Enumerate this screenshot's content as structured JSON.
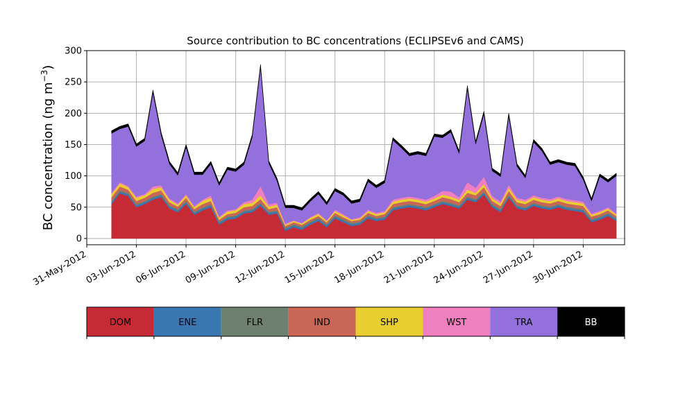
{
  "chart_data": {
    "type": "area",
    "title": "Source contribution to BC concentrations (ECLIPSEv6 and CAMS)",
    "ylabel": "BC concentration (ng m",
    "ylabel_exponent": "−3",
    "ylabel_close": ")",
    "xlabel": "",
    "ylim": [
      -10,
      300
    ],
    "xlim": [
      "2012-05-31T00:00",
      "2012-07-02T12:00"
    ],
    "grid": true,
    "y_ticks": [
      0,
      50,
      100,
      150,
      200,
      250,
      300
    ],
    "x_ticks": [
      "2012-05-31",
      "2012-06-03",
      "2012-06-06",
      "2012-06-09",
      "2012-06-12",
      "2012-06-15",
      "2012-06-18",
      "2012-06-21",
      "2012-06-24",
      "2012-06-27",
      "2012-06-30"
    ],
    "x_tick_labels": [
      "31-May-2012",
      "03-Jun-2012",
      "06-Jun-2012",
      "09-Jun-2012",
      "12-Jun-2012",
      "15-Jun-2012",
      "18-Jun-2012",
      "21-Jun-2012",
      "24-Jun-2012",
      "27-Jun-2012",
      "30-Jun-2012"
    ],
    "x": [
      "2012-06-01T12:00",
      "2012-06-02T00:00",
      "2012-06-02T12:00",
      "2012-06-03T00:00",
      "2012-06-03T12:00",
      "2012-06-04T00:00",
      "2012-06-04T12:00",
      "2012-06-05T00:00",
      "2012-06-05T12:00",
      "2012-06-06T00:00",
      "2012-06-06T12:00",
      "2012-06-07T00:00",
      "2012-06-07T12:00",
      "2012-06-08T00:00",
      "2012-06-08T12:00",
      "2012-06-09T00:00",
      "2012-06-09T12:00",
      "2012-06-10T00:00",
      "2012-06-10T12:00",
      "2012-06-11T00:00",
      "2012-06-11T12:00",
      "2012-06-12T00:00",
      "2012-06-12T12:00",
      "2012-06-13T00:00",
      "2012-06-13T12:00",
      "2012-06-14T00:00",
      "2012-06-14T12:00",
      "2012-06-15T00:00",
      "2012-06-15T12:00",
      "2012-06-16T00:00",
      "2012-06-16T12:00",
      "2012-06-17T00:00",
      "2012-06-17T12:00",
      "2012-06-18T00:00",
      "2012-06-18T12:00",
      "2012-06-19T00:00",
      "2012-06-19T12:00",
      "2012-06-20T00:00",
      "2012-06-20T12:00",
      "2012-06-21T00:00",
      "2012-06-21T12:00",
      "2012-06-22T00:00",
      "2012-06-22T12:00",
      "2012-06-23T00:00",
      "2012-06-23T12:00",
      "2012-06-24T00:00",
      "2012-06-24T12:00",
      "2012-06-25T00:00",
      "2012-06-25T12:00",
      "2012-06-26T00:00",
      "2012-06-26T12:00",
      "2012-06-27T00:00",
      "2012-06-27T12:00",
      "2012-06-28T00:00",
      "2012-06-28T12:00",
      "2012-06-29T00:00",
      "2012-06-29T12:00",
      "2012-06-30T00:00",
      "2012-06-30T12:00",
      "2012-07-01T00:00",
      "2012-07-01T12:00",
      "2012-07-02T00:00"
    ],
    "series": [
      {
        "name": "DOM",
        "color": "#c62a35",
        "values": [
          55,
          72,
          68,
          50,
          55,
          62,
          66,
          48,
          42,
          55,
          38,
          45,
          50,
          22,
          30,
          32,
          40,
          42,
          52,
          38,
          40,
          12,
          18,
          14,
          22,
          28,
          18,
          32,
          26,
          20,
          22,
          32,
          28,
          30,
          45,
          48,
          50,
          48,
          45,
          50,
          55,
          52,
          48,
          62,
          58,
          70,
          50,
          42,
          65,
          48,
          45,
          52,
          48,
          46,
          50,
          46,
          44,
          42,
          26,
          30,
          36,
          28
        ]
      },
      {
        "name": "ENE",
        "color": "#3a76b0",
        "values": [
          3,
          3,
          3,
          3,
          3,
          3,
          3,
          3,
          3,
          3,
          3,
          3,
          3,
          3,
          3,
          3,
          3,
          3,
          3,
          3,
          3,
          3,
          3,
          3,
          3,
          3,
          3,
          3,
          3,
          3,
          3,
          3,
          3,
          3,
          3,
          3,
          3,
          3,
          3,
          3,
          3,
          3,
          3,
          3,
          3,
          3,
          3,
          3,
          3,
          3,
          3,
          3,
          3,
          3,
          3,
          3,
          3,
          3,
          3,
          3,
          3,
          3
        ]
      },
      {
        "name": "FLR",
        "color": "#6e8070",
        "values": [
          2,
          2,
          2,
          2,
          2,
          2,
          2,
          2,
          2,
          2,
          2,
          2,
          2,
          2,
          2,
          2,
          2,
          2,
          2,
          2,
          2,
          2,
          2,
          2,
          2,
          2,
          2,
          2,
          2,
          2,
          2,
          2,
          2,
          2,
          2,
          2,
          2,
          2,
          2,
          2,
          2,
          2,
          2,
          2,
          2,
          2,
          2,
          2,
          2,
          2,
          2,
          2,
          2,
          2,
          2,
          2,
          2,
          2,
          2,
          2,
          2,
          2
        ]
      },
      {
        "name": "IND",
        "color": "#c96656",
        "values": [
          6,
          6,
          5,
          5,
          5,
          6,
          6,
          5,
          4,
          5,
          4,
          5,
          5,
          3,
          4,
          4,
          5,
          5,
          6,
          4,
          5,
          3,
          3,
          3,
          3,
          3,
          3,
          4,
          3,
          3,
          3,
          4,
          3,
          4,
          5,
          5,
          5,
          5,
          5,
          5,
          6,
          6,
          5,
          6,
          6,
          7,
          5,
          5,
          6,
          5,
          5,
          5,
          5,
          5,
          5,
          5,
          5,
          5,
          4,
          4,
          4,
          3
        ]
      },
      {
        "name": "SHP",
        "color": "#e8cf2f",
        "values": [
          5,
          5,
          4,
          5,
          4,
          6,
          5,
          4,
          3,
          4,
          3,
          5,
          5,
          3,
          4,
          4,
          5,
          5,
          6,
          4,
          4,
          2,
          2,
          2,
          3,
          3,
          2,
          3,
          3,
          2,
          2,
          3,
          3,
          3,
          4,
          4,
          4,
          4,
          4,
          4,
          4,
          4,
          4,
          5,
          4,
          5,
          4,
          4,
          5,
          4,
          4,
          4,
          4,
          4,
          4,
          4,
          4,
          4,
          3,
          3,
          3,
          2
        ]
      },
      {
        "name": "WST",
        "color": "#f07fc0",
        "values": [
          2,
          2,
          2,
          2,
          2,
          4,
          3,
          2,
          2,
          2,
          2,
          2,
          4,
          2,
          2,
          2,
          3,
          5,
          15,
          4,
          3,
          2,
          1,
          1,
          1,
          2,
          1,
          2,
          2,
          1,
          2,
          2,
          2,
          2,
          3,
          3,
          3,
          3,
          3,
          4,
          6,
          8,
          4,
          12,
          8,
          12,
          4,
          3,
          5,
          3,
          3,
          3,
          3,
          3,
          3,
          3,
          3,
          3,
          2,
          2,
          2,
          2
        ]
      },
      {
        "name": "TRA",
        "color": "#9370db",
        "values": [
          95,
          85,
          95,
          80,
          85,
          150,
          80,
          55,
          45,
          75,
          50,
          40,
          50,
          50,
          65,
          60,
          60,
          100,
          190,
          65,
          35,
          25,
          20,
          20,
          25,
          30,
          25,
          30,
          30,
          25,
          25,
          45,
          40,
          45,
          95,
          80,
          65,
          70,
          70,
          95,
          85,
          95,
          70,
          150,
          70,
          100,
          40,
          40,
          110,
          50,
          35,
          85,
          75,
          55,
          55,
          55,
          55,
          35,
          20,
          55,
          40,
          60
        ]
      },
      {
        "name": "BB",
        "color": "#000000",
        "values": [
          4,
          4,
          4,
          4,
          4,
          4,
          4,
          4,
          4,
          4,
          4,
          4,
          4,
          4,
          4,
          4,
          4,
          4,
          4,
          4,
          4,
          4,
          4,
          4,
          4,
          4,
          4,
          4,
          4,
          4,
          4,
          4,
          4,
          4,
          4,
          4,
          4,
          4,
          4,
          4,
          4,
          4,
          4,
          4,
          4,
          4,
          4,
          4,
          4,
          4,
          4,
          4,
          4,
          4,
          4,
          4,
          4,
          4,
          4,
          4,
          4,
          4
        ]
      }
    ],
    "legend_placement": "below-chart colorbar"
  }
}
